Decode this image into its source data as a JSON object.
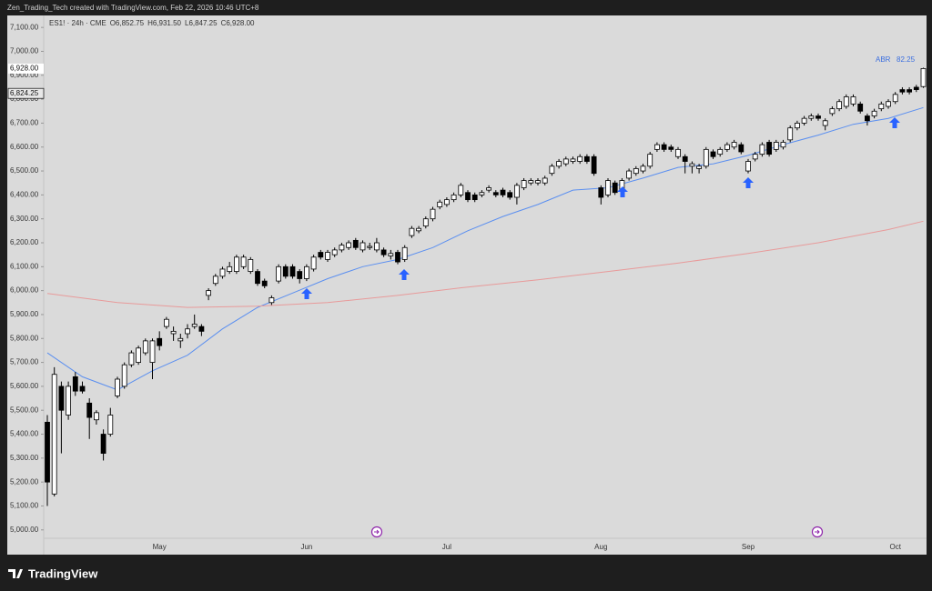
{
  "header": "Zen_Trading_Tech created with TradingView.com, Feb 22, 2026 10:46 UTC+8",
  "footer": "TradingView",
  "chart_data": {
    "type": "candlestick",
    "legend": {
      "symbol": "ES1! · 24h · CME",
      "fields": [
        {
          "label": "O",
          "value": "6,852.75"
        },
        {
          "label": "H",
          "value": "6,931.50"
        },
        {
          "label": "L",
          "value": "6,847.25"
        },
        {
          "label": "C",
          "value": "6,928.00"
        }
      ]
    },
    "indicator": {
      "name": "ABR",
      "value": 82.25,
      "color": "#3b6fe0"
    },
    "price_labels": [
      {
        "value": 6928,
        "label": "6,928.00"
      },
      {
        "value": 6824.25,
        "label": "6,824.25"
      }
    ],
    "ylim": [
      4965,
      7150
    ],
    "yticks": [
      {
        "value": 5000,
        "label": "5,000.00"
      },
      {
        "value": 5100,
        "label": "5,100.00"
      },
      {
        "value": 5200,
        "label": "5,200.00"
      },
      {
        "value": 5300,
        "label": "5,300.00"
      },
      {
        "value": 5400,
        "label": "5,400.00"
      },
      {
        "value": 5500,
        "label": "5,500.00"
      },
      {
        "value": 5600,
        "label": "5,600.00"
      },
      {
        "value": 5700,
        "label": "5,700.00"
      },
      {
        "value": 5800,
        "label": "5,800.00"
      },
      {
        "value": 5900,
        "label": "5,900.00"
      },
      {
        "value": 6000,
        "label": "6,000.00"
      },
      {
        "value": 6100,
        "label": "6,100.00"
      },
      {
        "value": 6200,
        "label": "6,200.00"
      },
      {
        "value": 6300,
        "label": "6,300.00"
      },
      {
        "value": 6400,
        "label": "6,400.00"
      },
      {
        "value": 6500,
        "label": "6,500.00"
      },
      {
        "value": 6600,
        "label": "6,600.00"
      },
      {
        "value": 6700,
        "label": "6,700.00"
      },
      {
        "value": 6800,
        "label": "6,800.00"
      },
      {
        "value": 6900,
        "label": "6,900.00"
      },
      {
        "value": 7000,
        "label": "7,000.00"
      },
      {
        "value": 7100,
        "label": "7,100.00"
      }
    ],
    "categories": [
      null,
      null,
      null,
      null,
      null,
      null,
      null,
      null,
      null,
      null,
      null,
      null,
      null,
      null,
      null,
      null,
      "May",
      null,
      null,
      null,
      null,
      null,
      null,
      null,
      null,
      null,
      null,
      null,
      null,
      null,
      null,
      null,
      null,
      null,
      null,
      null,
      null,
      "Jun",
      null,
      null,
      null,
      null,
      null,
      null,
      null,
      null,
      null,
      null,
      null,
      null,
      null,
      null,
      null,
      null,
      null,
      null,
      null,
      "Jul",
      null,
      null,
      null,
      null,
      null,
      null,
      null,
      null,
      null,
      null,
      null,
      null,
      null,
      null,
      null,
      null,
      null,
      null,
      null,
      null,
      null,
      "Aug",
      null,
      null,
      null,
      null,
      null,
      null,
      null,
      null,
      null,
      null,
      null,
      null,
      null,
      null,
      null,
      null,
      null,
      null,
      null,
      null,
      "Sep",
      null,
      null,
      null,
      null,
      null,
      null,
      null,
      null,
      null,
      null,
      null,
      null,
      null,
      null,
      null,
      null,
      null,
      null,
      null,
      null,
      "Oct",
      null,
      null,
      null,
      null
    ],
    "ohlc": [
      [
        5450,
        5480,
        5100,
        5200
      ],
      [
        5150,
        5680,
        5140,
        5650
      ],
      [
        5600,
        5620,
        5320,
        5500
      ],
      [
        5480,
        5620,
        5460,
        5600
      ],
      [
        5640,
        5660,
        5560,
        5580
      ],
      [
        5600,
        5620,
        5570,
        5580
      ],
      [
        5530,
        5550,
        5380,
        5470
      ],
      [
        5460,
        5500,
        5440,
        5490
      ],
      [
        5400,
        5420,
        5290,
        5320
      ],
      [
        5400,
        5510,
        5390,
        5480
      ],
      [
        5560,
        5640,
        5550,
        5630
      ],
      [
        5600,
        5700,
        5590,
        5690
      ],
      [
        5690,
        5750,
        5680,
        5740
      ],
      [
        5700,
        5770,
        5690,
        5760
      ],
      [
        5740,
        5800,
        5730,
        5790
      ],
      [
        5700,
        5800,
        5630,
        5790
      ],
      [
        5800,
        5830,
        5750,
        5770
      ],
      [
        5850,
        5890,
        5840,
        5880
      ],
      [
        5820,
        5850,
        5790,
        5830
      ],
      [
        5790,
        5820,
        5760,
        5800
      ],
      [
        5820,
        5860,
        5800,
        5840
      ],
      [
        5850,
        5900,
        5840,
        5860
      ],
      [
        5850,
        5860,
        5810,
        5830
      ],
      [
        5980,
        6010,
        5960,
        6000
      ],
      [
        6030,
        6070,
        6020,
        6060
      ],
      [
        6060,
        6100,
        6050,
        6090
      ],
      [
        6080,
        6120,
        6070,
        6100
      ],
      [
        6080,
        6150,
        6070,
        6140
      ],
      [
        6100,
        6150,
        6090,
        6140
      ],
      [
        6080,
        6140,
        6070,
        6130
      ],
      [
        6080,
        6090,
        6020,
        6030
      ],
      [
        6040,
        6050,
        6010,
        6020
      ],
      [
        5950,
        5980,
        5940,
        5970
      ],
      [
        6040,
        6110,
        6030,
        6100
      ],
      [
        6100,
        6110,
        6050,
        6060
      ],
      [
        6100,
        6110,
        6050,
        6060
      ],
      [
        6080,
        6090,
        6030,
        6050
      ],
      [
        6050,
        6110,
        6040,
        6100
      ],
      [
        6090,
        6150,
        6080,
        6140
      ],
      [
        6160,
        6170,
        6130,
        6140
      ],
      [
        6130,
        6170,
        6120,
        6160
      ],
      [
        6150,
        6180,
        6140,
        6170
      ],
      [
        6170,
        6200,
        6160,
        6190
      ],
      [
        6180,
        6210,
        6170,
        6200
      ],
      [
        6210,
        6220,
        6170,
        6180
      ],
      [
        6170,
        6210,
        6160,
        6200
      ],
      [
        6180,
        6200,
        6170,
        6185
      ],
      [
        6170,
        6220,
        6160,
        6200
      ],
      [
        6170,
        6180,
        6140,
        6150
      ],
      [
        6145,
        6170,
        6130,
        6155
      ],
      [
        6160,
        6170,
        6110,
        6120
      ],
      [
        6130,
        6190,
        6120,
        6180
      ],
      [
        6230,
        6270,
        6220,
        6260
      ],
      [
        6250,
        6270,
        6240,
        6260
      ],
      [
        6270,
        6310,
        6260,
        6300
      ],
      [
        6300,
        6350,
        6290,
        6340
      ],
      [
        6350,
        6380,
        6340,
        6370
      ],
      [
        6360,
        6390,
        6350,
        6380
      ],
      [
        6380,
        6410,
        6370,
        6400
      ],
      [
        6400,
        6450,
        6390,
        6440
      ],
      [
        6410,
        6420,
        6370,
        6380
      ],
      [
        6400,
        6410,
        6370,
        6380
      ],
      [
        6400,
        6420,
        6390,
        6410
      ],
      [
        6420,
        6440,
        6410,
        6430
      ],
      [
        6410,
        6420,
        6390,
        6400
      ],
      [
        6420,
        6430,
        6390,
        6400
      ],
      [
        6410,
        6420,
        6380,
        6390
      ],
      [
        6390,
        6450,
        6360,
        6440
      ],
      [
        6430,
        6470,
        6420,
        6460
      ],
      [
        6450,
        6470,
        6440,
        6460
      ],
      [
        6450,
        6470,
        6440,
        6460
      ],
      [
        6450,
        6480,
        6440,
        6470
      ],
      [
        6490,
        6530,
        6480,
        6520
      ],
      [
        6520,
        6550,
        6510,
        6540
      ],
      [
        6530,
        6560,
        6520,
        6550
      ],
      [
        6540,
        6560,
        6530,
        6550
      ],
      [
        6540,
        6570,
        6530,
        6560
      ],
      [
        6560,
        6570,
        6530,
        6540
      ],
      [
        6560,
        6570,
        6480,
        6490
      ],
      [
        6430,
        6440,
        6360,
        6390
      ],
      [
        6400,
        6470,
        6390,
        6460
      ],
      [
        6450,
        6460,
        6400,
        6410
      ],
      [
        6420,
        6470,
        6410,
        6460
      ],
      [
        6470,
        6510,
        6460,
        6500
      ],
      [
        6490,
        6520,
        6480,
        6510
      ],
      [
        6500,
        6530,
        6490,
        6520
      ],
      [
        6520,
        6580,
        6510,
        6570
      ],
      [
        6590,
        6620,
        6580,
        6610
      ],
      [
        6610,
        6620,
        6580,
        6590
      ],
      [
        6600,
        6610,
        6580,
        6590
      ],
      [
        6560,
        6600,
        6550,
        6590
      ],
      [
        6560,
        6570,
        6490,
        6540
      ],
      [
        6520,
        6540,
        6490,
        6530
      ],
      [
        6510,
        6530,
        6490,
        6520
      ],
      [
        6520,
        6600,
        6510,
        6590
      ],
      [
        6580,
        6590,
        6550,
        6560
      ],
      [
        6570,
        6600,
        6560,
        6590
      ],
      [
        6590,
        6620,
        6580,
        6610
      ],
      [
        6600,
        6630,
        6590,
        6620
      ],
      [
        6610,
        6620,
        6570,
        6580
      ],
      [
        6500,
        6550,
        6490,
        6540
      ],
      [
        6550,
        6580,
        6540,
        6570
      ],
      [
        6570,
        6620,
        6560,
        6610
      ],
      [
        6620,
        6630,
        6560,
        6570
      ],
      [
        6590,
        6630,
        6580,
        6620
      ],
      [
        6600,
        6630,
        6590,
        6620
      ],
      [
        6630,
        6690,
        6620,
        6680
      ],
      [
        6680,
        6710,
        6670,
        6700
      ],
      [
        6700,
        6730,
        6690,
        6720
      ],
      [
        6720,
        6740,
        6710,
        6730
      ],
      [
        6730,
        6740,
        6710,
        6720
      ],
      [
        6690,
        6720,
        6670,
        6710
      ],
      [
        6740,
        6770,
        6730,
        6760
      ],
      [
        6760,
        6800,
        6750,
        6790
      ],
      [
        6770,
        6820,
        6760,
        6810
      ],
      [
        6780,
        6820,
        6770,
        6810
      ],
      [
        6780,
        6790,
        6740,
        6750
      ],
      [
        6730,
        6740,
        6690,
        6710
      ],
      [
        6730,
        6760,
        6720,
        6750
      ],
      [
        6760,
        6790,
        6750,
        6780
      ],
      [
        6770,
        6800,
        6760,
        6790
      ],
      [
        6790,
        6830,
        6780,
        6820
      ],
      [
        6840,
        6850,
        6820,
        6830
      ],
      [
        6840,
        6850,
        6820,
        6830
      ],
      [
        6850,
        6860,
        6830,
        6840
      ],
      [
        6852.75,
        6931.5,
        6847.25,
        6928
      ]
    ],
    "moving_averages": [
      {
        "color": "#5b8ff0",
        "index": [
          0,
          5,
          10,
          15,
          20,
          25,
          30,
          35,
          40,
          45,
          50,
          55,
          60,
          65,
          70,
          75,
          80,
          85,
          90,
          95,
          100,
          105,
          110,
          115,
          120,
          125
        ],
        "values": [
          5740,
          5640,
          5585,
          5665,
          5730,
          5840,
          5930,
          5990,
          6050,
          6100,
          6130,
          6180,
          6250,
          6310,
          6360,
          6420,
          6430,
          6470,
          6515,
          6530,
          6565,
          6610,
          6650,
          6695,
          6720,
          6765
        ]
      },
      {
        "color": "#e89a9a",
        "index": [
          0,
          10,
          20,
          30,
          40,
          50,
          60,
          70,
          80,
          90,
          100,
          110,
          120,
          125
        ],
        "values": [
          5988,
          5950,
          5930,
          5935,
          5950,
          5980,
          6015,
          6045,
          6080,
          6115,
          6155,
          6200,
          6255,
          6290
        ]
      }
    ]
  }
}
